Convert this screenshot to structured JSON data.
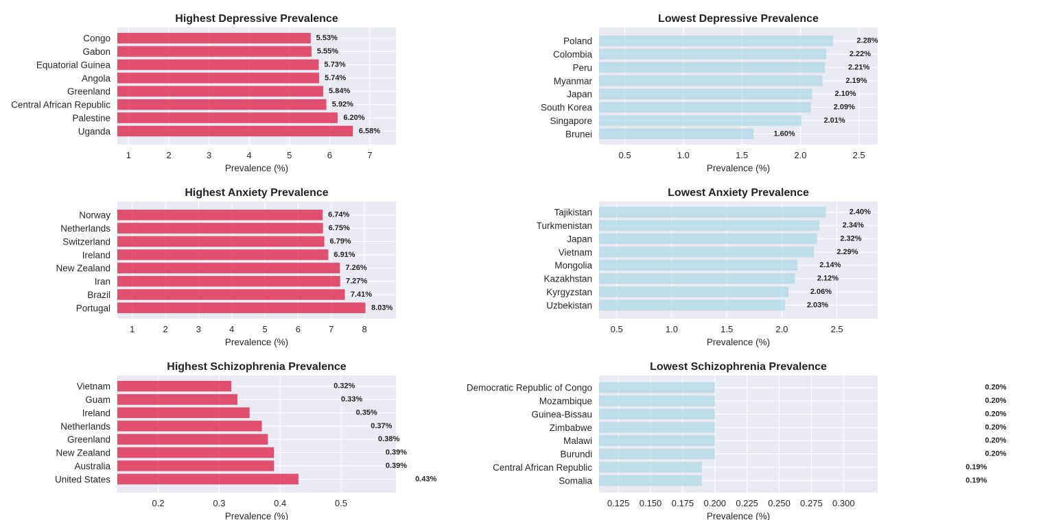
{
  "chart_data": [
    {
      "type": "bar",
      "orientation": "horizontal",
      "title": "Highest Depressive Prevalence",
      "xlabel": "Prevalence (%)",
      "categories": [
        "Congo",
        "Gabon",
        "Equatorial Guinea",
        "Angola",
        "Greenland",
        "Central African Republic",
        "Palestine",
        "Uganda"
      ],
      "values": [
        5.53,
        5.55,
        5.73,
        5.74,
        5.84,
        5.92,
        6.2,
        6.58
      ],
      "value_labels": [
        "5.53%",
        "5.55%",
        "5.73%",
        "5.74%",
        "5.84%",
        "5.92%",
        "6.20%",
        "6.58%"
      ],
      "xlim": [
        0.72,
        7.65
      ],
      "xticks": [
        1,
        2,
        3,
        4,
        5,
        6,
        7
      ],
      "xtick_labels": [
        "1",
        "2",
        "3",
        "4",
        "5",
        "6",
        "7"
      ],
      "bar_color": "#DC143C",
      "grid": true
    },
    {
      "type": "bar",
      "orientation": "horizontal",
      "title": "Lowest Depressive Prevalence",
      "xlabel": "Prevalence (%)",
      "categories": [
        "Poland",
        "Colombia",
        "Peru",
        "Myanmar",
        "Japan",
        "South Korea",
        "Singapore",
        "Brunei"
      ],
      "values": [
        2.28,
        2.22,
        2.21,
        2.19,
        2.1,
        2.09,
        2.01,
        1.6
      ],
      "value_labels": [
        "2.28%",
        "2.22%",
        "2.21%",
        "2.19%",
        "2.10%",
        "2.09%",
        "2.01%",
        "1.60%"
      ],
      "xlim": [
        0.28,
        2.66
      ],
      "xticks": [
        0.5,
        1.0,
        1.5,
        2.0,
        2.5
      ],
      "xtick_labels": [
        "0.5",
        "1.0",
        "1.5",
        "2.0",
        "2.5"
      ],
      "bar_color": "#ADD8E6",
      "grid": true
    },
    {
      "type": "bar",
      "orientation": "horizontal",
      "title": "Highest Anxiety Prevalence",
      "xlabel": "Prevalence (%)",
      "categories": [
        "Norway",
        "Netherlands",
        "Switzerland",
        "Ireland",
        "New Zealand",
        "Iran",
        "Brazil",
        "Portugal"
      ],
      "values": [
        6.74,
        6.75,
        6.79,
        6.91,
        7.26,
        7.27,
        7.41,
        8.03
      ],
      "value_labels": [
        "6.74%",
        "6.75%",
        "6.79%",
        "6.91%",
        "7.26%",
        "7.27%",
        "7.41%",
        "8.03%"
      ],
      "xlim": [
        0.55,
        8.95
      ],
      "xticks": [
        1,
        2,
        3,
        4,
        5,
        6,
        7,
        8
      ],
      "xtick_labels": [
        "1",
        "2",
        "3",
        "4",
        "5",
        "6",
        "7",
        "8"
      ],
      "bar_color": "#DC143C",
      "grid": true
    },
    {
      "type": "bar",
      "orientation": "horizontal",
      "title": "Lowest Anxiety Prevalence",
      "xlabel": "Prevalence (%)",
      "categories": [
        "Tajikistan",
        "Turkmenistan",
        "Japan",
        "Vietnam",
        "Mongolia",
        "Kazakhstan",
        "Kyrgyzstan",
        "Uzbekistan"
      ],
      "values": [
        2.4,
        2.34,
        2.32,
        2.29,
        2.14,
        2.12,
        2.06,
        2.03
      ],
      "value_labels": [
        "2.40%",
        "2.34%",
        "2.32%",
        "2.29%",
        "2.14%",
        "2.12%",
        "2.06%",
        "2.03%"
      ],
      "xlim": [
        0.34,
        2.87
      ],
      "xticks": [
        0.5,
        1.0,
        1.5,
        2.0,
        2.5
      ],
      "xtick_labels": [
        "0.5",
        "1.0",
        "1.5",
        "2.0",
        "2.5"
      ],
      "bar_color": "#ADD8E6",
      "grid": true
    },
    {
      "type": "bar",
      "orientation": "horizontal",
      "title": "Highest Schizophrenia Prevalence",
      "xlabel": "Prevalence (%)",
      "categories": [
        "Vietnam",
        "Guam",
        "Ireland",
        "Netherlands",
        "Greenland",
        "New Zealand",
        "Australia",
        "United States"
      ],
      "values": [
        0.32,
        0.33,
        0.35,
        0.37,
        0.38,
        0.39,
        0.39,
        0.43
      ],
      "value_labels": [
        "0.32%",
        "0.33%",
        "0.35%",
        "0.37%",
        "0.38%",
        "0.39%",
        "0.39%",
        "0.43%"
      ],
      "xlim": [
        0.133,
        0.59
      ],
      "xticks": [
        0.2,
        0.3,
        0.4,
        0.5
      ],
      "xtick_labels": [
        "0.2",
        "0.3",
        "0.4",
        "0.5"
      ],
      "bar_color": "#DC143C",
      "grid": true
    },
    {
      "type": "bar",
      "orientation": "horizontal",
      "title": "Lowest Schizophrenia Prevalence",
      "xlabel": "Prevalence (%)",
      "categories": [
        "Democratic Republic of Congo",
        "Mozambique",
        "Guinea-Bissau",
        "Zimbabwe",
        "Malawi",
        "Burundi",
        "Central African Republic",
        "Somalia"
      ],
      "values": [
        0.2,
        0.2,
        0.2,
        0.2,
        0.2,
        0.2,
        0.19,
        0.19
      ],
      "value_labels": [
        "0.20%",
        "0.20%",
        "0.20%",
        "0.20%",
        "0.20%",
        "0.20%",
        "0.19%",
        "0.19%"
      ],
      "xlim": [
        0.11,
        0.3265
      ],
      "xticks": [
        0.125,
        0.15,
        0.175,
        0.2,
        0.225,
        0.25,
        0.275,
        0.3
      ],
      "xtick_labels": [
        "0.125",
        "0.150",
        "0.175",
        "0.200",
        "0.225",
        "0.250",
        "0.275",
        "0.300"
      ],
      "bar_color": "#ADD8E6",
      "grid": true
    }
  ]
}
